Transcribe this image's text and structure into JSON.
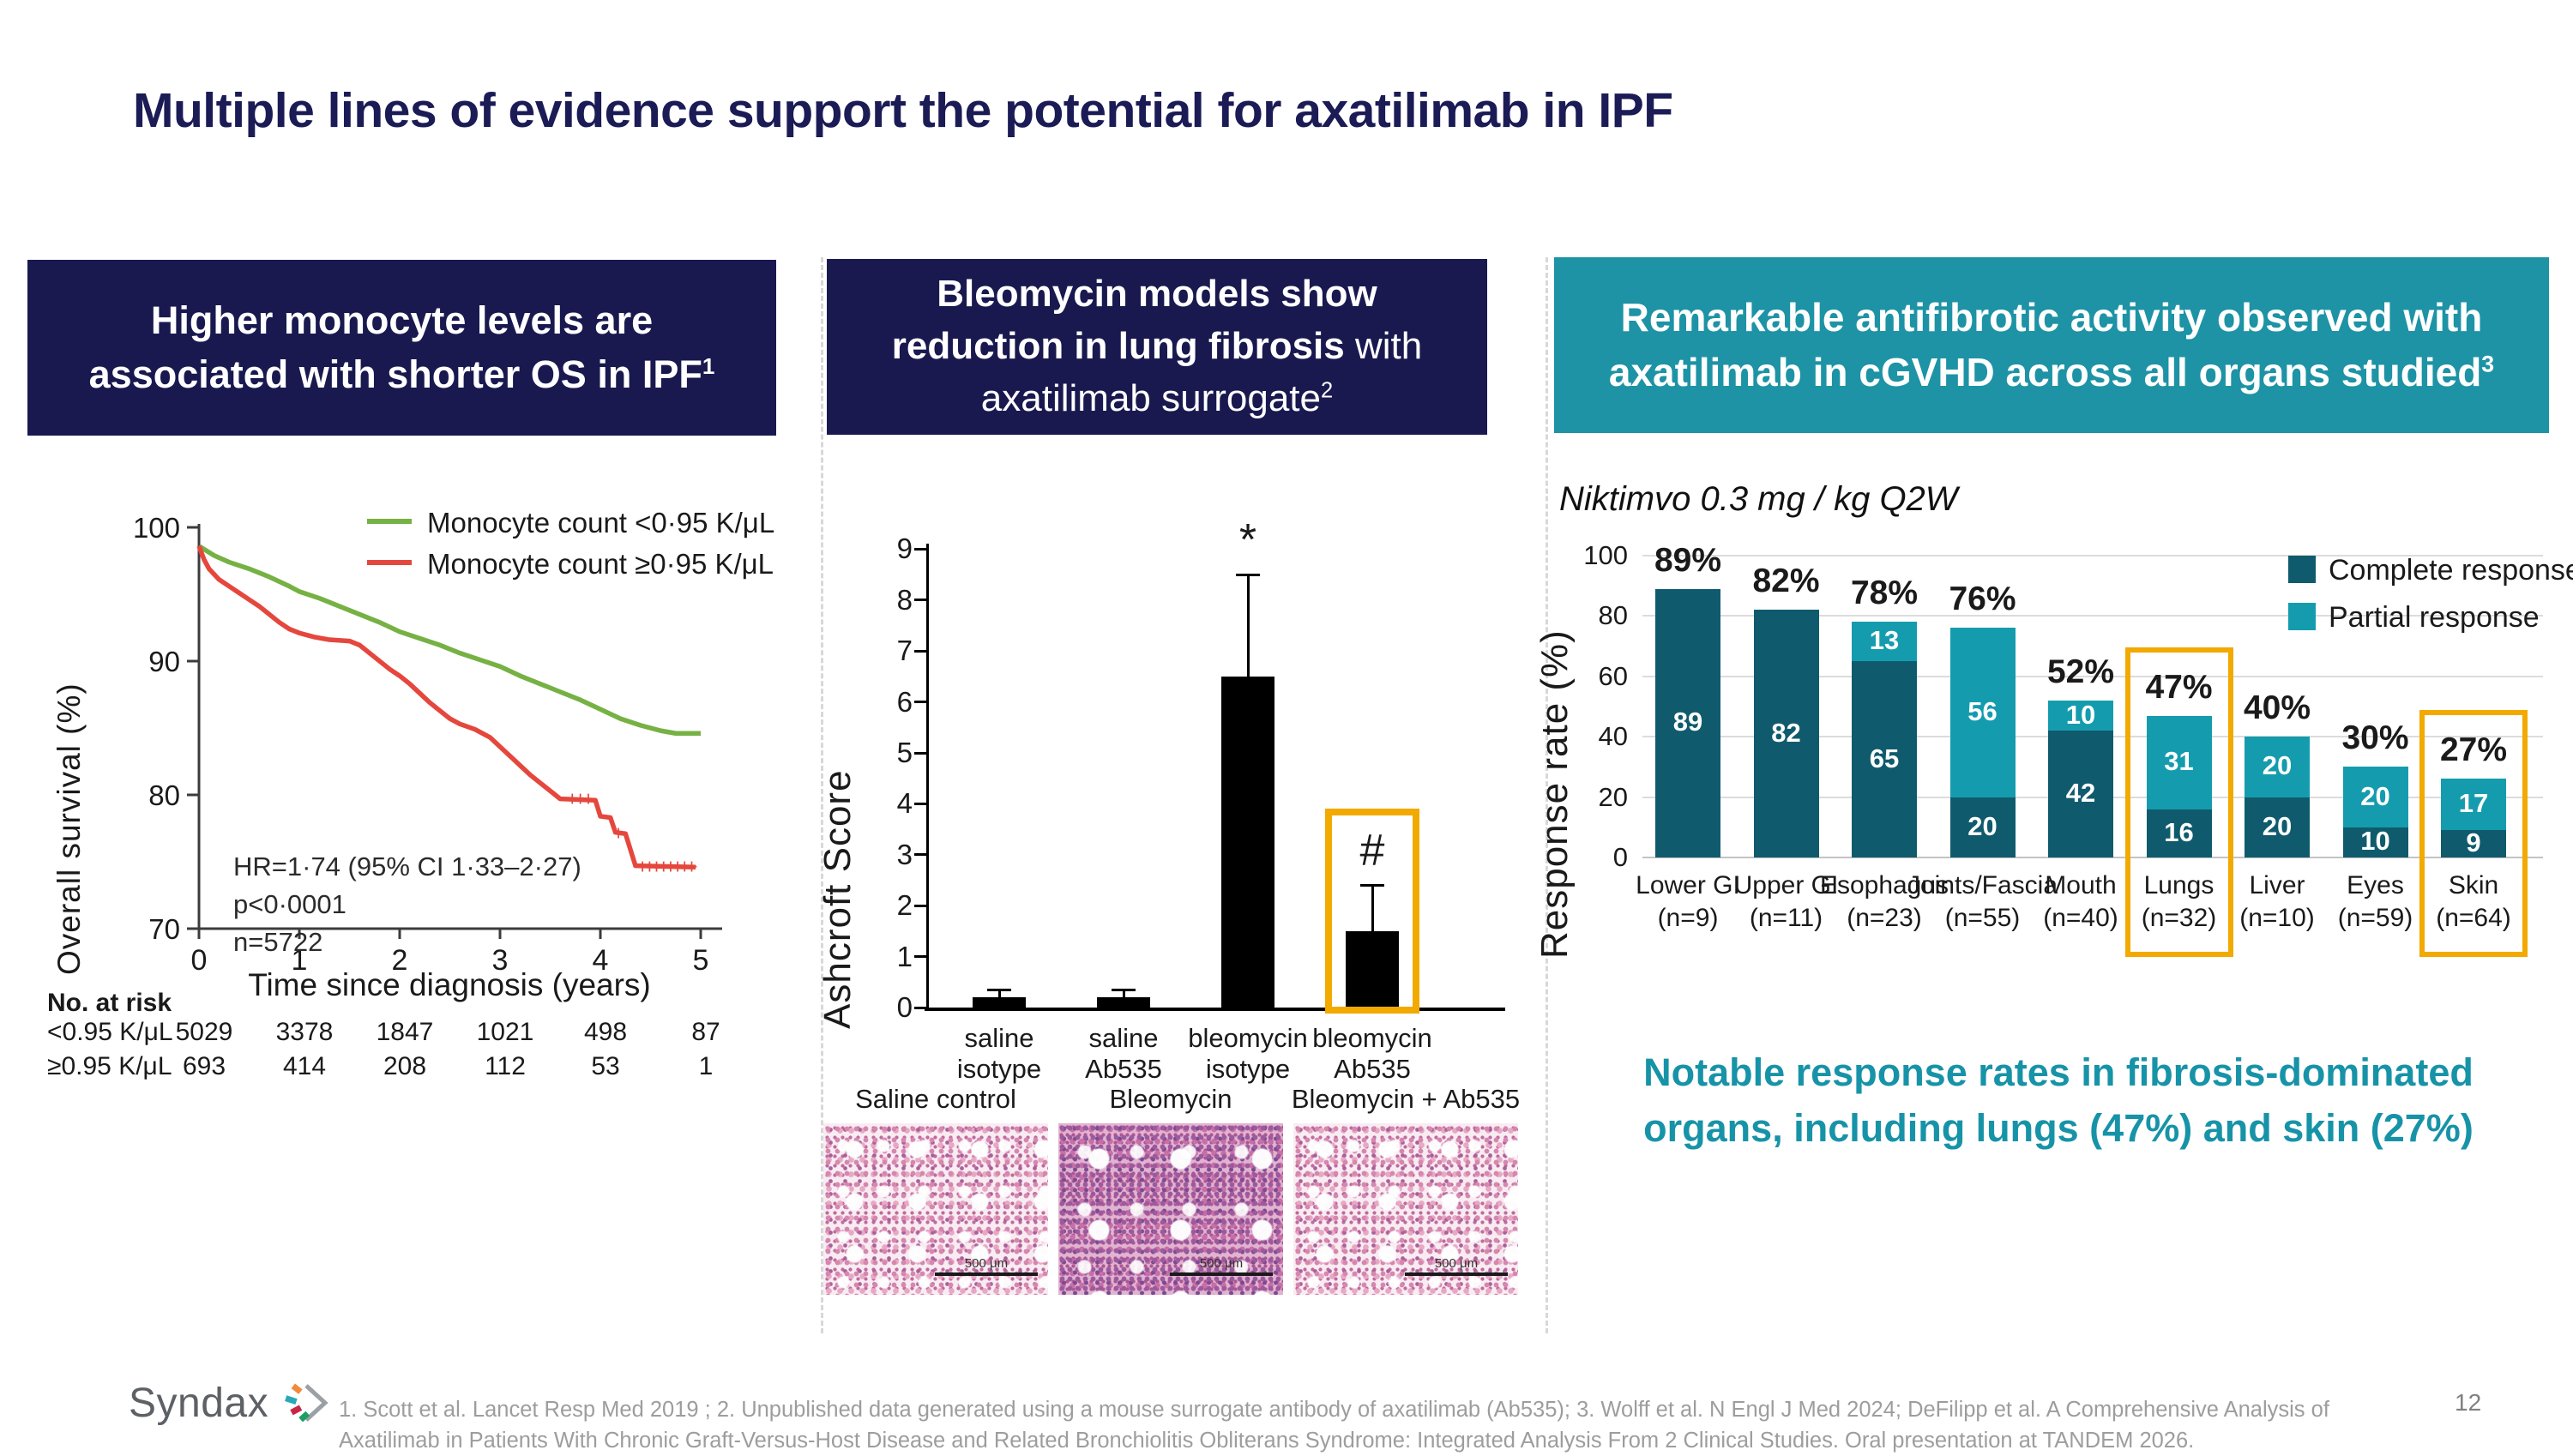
{
  "slide": {
    "title": "Multiple lines of evidence support the potential for axatilimab in IPF"
  },
  "panels": {
    "left": {
      "line1": "Higher monocyte levels are",
      "line2": "associated with shorter OS in IPF",
      "sup": "1"
    },
    "middle": {
      "line1": "Bleomycin models show",
      "line2_bold": "reduction in lung fibrosis",
      "line2_regular": " with",
      "line3": "axatilimab surrogate",
      "sup": "2"
    },
    "right": {
      "line1": "Remarkable antifibrotic activity observed with",
      "line2": "axatilimab in cGVHD across all organs studied",
      "sup": "3",
      "subtitle": "Niktimvo 0.3 mg / kg Q2W",
      "callout_line1": "Notable response rates in fibrosis-dominated",
      "callout_line2": "organs, including lungs (47%) and skin (27%)",
      "callout_color": "#1793a8"
    }
  },
  "chart_data": [
    {
      "id": "km",
      "type": "line",
      "ylabel": "Overall survival (%)",
      "xlabel": "Time since diagnosis (years)",
      "ylim": [
        70,
        100
      ],
      "xlim": [
        0,
        5
      ],
      "yticks": [
        100,
        90,
        80,
        70
      ],
      "xticks": [
        0,
        1,
        2,
        3,
        4,
        5
      ],
      "grid": false,
      "legend_position": "top-right",
      "series": [
        {
          "name": "Monocyte count <0·95 K/μL",
          "color": "#76b144",
          "points": [
            [
              0,
              98.6
            ],
            [
              0.15,
              97.9
            ],
            [
              0.3,
              97.4
            ],
            [
              0.5,
              96.9
            ],
            [
              0.7,
              96.3
            ],
            [
              0.9,
              95.6
            ],
            [
              1.0,
              95.2
            ],
            [
              1.2,
              94.7
            ],
            [
              1.4,
              94.1
            ],
            [
              1.6,
              93.5
            ],
            [
              1.8,
              92.9
            ],
            [
              2.0,
              92.2
            ],
            [
              2.2,
              91.7
            ],
            [
              2.4,
              91.2
            ],
            [
              2.6,
              90.6
            ],
            [
              2.8,
              90.1
            ],
            [
              3.0,
              89.6
            ],
            [
              3.2,
              88.9
            ],
            [
              3.4,
              88.3
            ],
            [
              3.6,
              87.7
            ],
            [
              3.8,
              87.1
            ],
            [
              4.0,
              86.4
            ],
            [
              4.2,
              85.7
            ],
            [
              4.4,
              85.2
            ],
            [
              4.6,
              84.8
            ],
            [
              4.75,
              84.6
            ],
            [
              5.0,
              84.6
            ]
          ]
        },
        {
          "name": "Monocyte count ≥0·95 K/μL",
          "color": "#e5473d",
          "points": [
            [
              0,
              98.6
            ],
            [
              0.05,
              97.6
            ],
            [
              0.1,
              96.9
            ],
            [
              0.2,
              96.1
            ],
            [
              0.3,
              95.6
            ],
            [
              0.4,
              95.1
            ],
            [
              0.5,
              94.6
            ],
            [
              0.6,
              94.1
            ],
            [
              0.7,
              93.5
            ],
            [
              0.8,
              92.9
            ],
            [
              0.9,
              92.4
            ],
            [
              1.0,
              92.1
            ],
            [
              1.15,
              91.8
            ],
            [
              1.3,
              91.6
            ],
            [
              1.5,
              91.5
            ],
            [
              1.6,
              91.2
            ],
            [
              1.7,
              90.6
            ],
            [
              1.8,
              90.0
            ],
            [
              1.9,
              89.4
            ],
            [
              2.0,
              88.9
            ],
            [
              2.1,
              88.3
            ],
            [
              2.2,
              87.6
            ],
            [
              2.3,
              86.9
            ],
            [
              2.4,
              86.3
            ],
            [
              2.5,
              85.7
            ],
            [
              2.6,
              85.3
            ],
            [
              2.75,
              84.9
            ],
            [
              2.9,
              84.3
            ],
            [
              3.0,
              83.6
            ],
            [
              3.1,
              82.9
            ],
            [
              3.2,
              82.2
            ],
            [
              3.3,
              81.5
            ],
            [
              3.4,
              80.9
            ],
            [
              3.5,
              80.3
            ],
            [
              3.6,
              79.7
            ],
            [
              3.95,
              79.6
            ],
            [
              4.0,
              78.4
            ],
            [
              4.1,
              78.3
            ],
            [
              4.15,
              77.2
            ],
            [
              4.25,
              77.1
            ],
            [
              4.3,
              75.9
            ],
            [
              4.35,
              74.7
            ],
            [
              4.95,
              74.6
            ]
          ],
          "censor_marks": [
            [
              3.72,
              79.7
            ],
            [
              3.8,
              79.7
            ],
            [
              3.88,
              79.7
            ],
            [
              4.18,
              77.15
            ],
            [
              4.42,
              74.65
            ],
            [
              4.49,
              74.65
            ],
            [
              4.56,
              74.65
            ],
            [
              4.63,
              74.65
            ],
            [
              4.7,
              74.65
            ],
            [
              4.77,
              74.65
            ],
            [
              4.84,
              74.65
            ],
            [
              4.91,
              74.65
            ]
          ]
        }
      ],
      "annotations": [
        "HR=1·74 (95% CI 1·33–2·27)",
        "p<0·0001",
        "n=5722"
      ],
      "at_risk": {
        "title": "No. at risk",
        "rows": [
          {
            "label": "<0.95 K/μL",
            "values": [
              "5029",
              "3378",
              "1847",
              "1021",
              "498",
              "87"
            ]
          },
          {
            "label": "≥0.95 K/μL",
            "values": [
              "693",
              "414",
              "208",
              "112",
              "53",
              "1"
            ]
          }
        ]
      }
    },
    {
      "id": "ashcroft",
      "type": "bar",
      "ylabel": "Ashcroft Score",
      "ylim": [
        0,
        9
      ],
      "yticks": [
        0,
        1,
        2,
        3,
        4,
        5,
        6,
        7,
        8,
        9
      ],
      "grid": false,
      "categories": [
        [
          "saline",
          "isotype"
        ],
        [
          "saline",
          "Ab535"
        ],
        [
          "bleomycin",
          "isotype"
        ],
        [
          "bleomycin",
          "Ab535"
        ]
      ],
      "values": [
        0.2,
        0.2,
        6.5,
        1.5
      ],
      "errors": [
        0.15,
        0.15,
        2.0,
        0.9
      ],
      "bar_color": "#000000",
      "annotations": [
        {
          "index": 2,
          "text": "*"
        },
        {
          "index": 3,
          "text": "#"
        }
      ],
      "highlight_box": {
        "index": 3,
        "top_value": 3.9,
        "color": "#f2a900"
      }
    },
    {
      "id": "response",
      "type": "bar",
      "stacked": true,
      "ylabel": "Response rate (%)",
      "ylim": [
        0,
        100
      ],
      "yticks": [
        0,
        20,
        40,
        60,
        80,
        100
      ],
      "grid": true,
      "categories": [
        "Lower GI",
        "Upper GI",
        "Esophagus",
        "Joints/Fascia",
        "Mouth",
        "Lungs",
        "Liver",
        "Eyes",
        "Skin"
      ],
      "n_labels": [
        "(n=9)",
        "(n=11)",
        "(n=23)",
        "(n=55)",
        "(n=40)",
        "(n=32)",
        "(n=10)",
        "(n=59)",
        "(n=64)"
      ],
      "series": [
        {
          "name": "Complete response",
          "color": "#0f5b6d",
          "values": [
            89,
            82,
            65,
            20,
            42,
            16,
            20,
            10,
            9
          ]
        },
        {
          "name": "Partial response",
          "color": "#149cae",
          "values": [
            0,
            0,
            13,
            56,
            10,
            31,
            20,
            20,
            17
          ]
        }
      ],
      "totals": [
        "89%",
        "82%",
        "78%",
        "76%",
        "52%",
        "47%",
        "40%",
        "30%",
        "27%"
      ],
      "highlighted_indices": [
        5,
        8
      ],
      "highlight_color": "#f2a900",
      "legend_position": "top-right"
    }
  ],
  "histology": {
    "labels": [
      "Saline control",
      "Bleomycin",
      "Bleomycin + Ab535"
    ],
    "scale_bar": "500 μm"
  },
  "footer": {
    "logo_text": "Syndax",
    "footnote_line1": "1. Scott et al. Lancet Resp Med 2019 ; 2. Unpublished data generated using a mouse surrogate antibody of axatilimab (Ab535); 3. Wolff et al. N Engl J Med 2024; DeFilipp et al. A Comprehensive Analysis of",
    "footnote_line2": "Axatilimab in Patients With Chronic Graft-Versus-Host Disease and Related Bronchiolitis Obliterans Syndrome: Integrated Analysis From 2 Clinical Studies. Oral presentation at TANDEM 2026.",
    "page_number": "12"
  }
}
